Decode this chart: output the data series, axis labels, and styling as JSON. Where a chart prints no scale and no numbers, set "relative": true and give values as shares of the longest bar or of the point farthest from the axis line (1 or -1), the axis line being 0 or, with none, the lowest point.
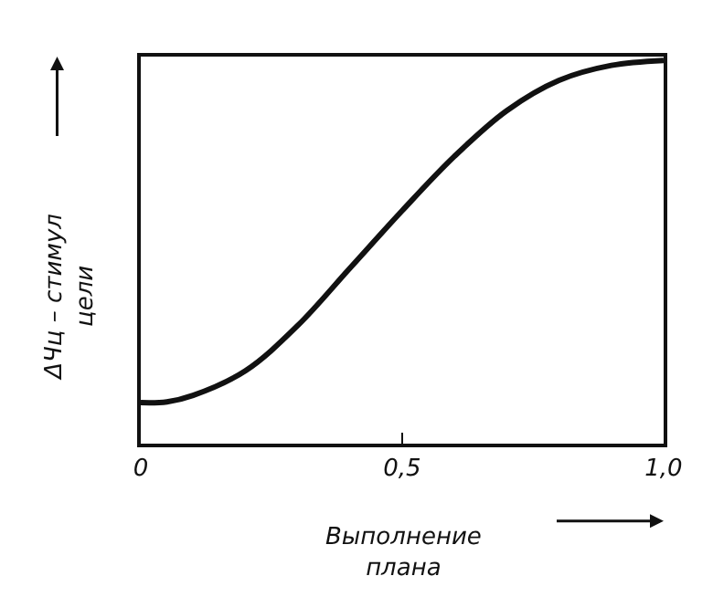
{
  "chart_data": {
    "type": "line",
    "relative": true,
    "xlabel": "Выполнение\nплана",
    "ylabel": "ΔЧц – стимул\nцели",
    "x": [
      0,
      0.05,
      0.1,
      0.2,
      0.3,
      0.4,
      0.5,
      0.6,
      0.7,
      0.8,
      0.9,
      1.0
    ],
    "series": [
      {
        "color": "#111111",
        "values": [
          0.107,
          0.109,
          0.126,
          0.19,
          0.308,
          0.458,
          0.608,
          0.75,
          0.869,
          0.948,
          0.987,
          1.0
        ]
      }
    ],
    "xlim": [
      0,
      1.0
    ],
    "xticks": [
      {
        "value": 0,
        "label": "0"
      },
      {
        "value": 0.5,
        "label": "0,5"
      },
      {
        "value": 1.0,
        "label": "1,0"
      }
    ],
    "marker": "none",
    "line_style": "solid"
  }
}
